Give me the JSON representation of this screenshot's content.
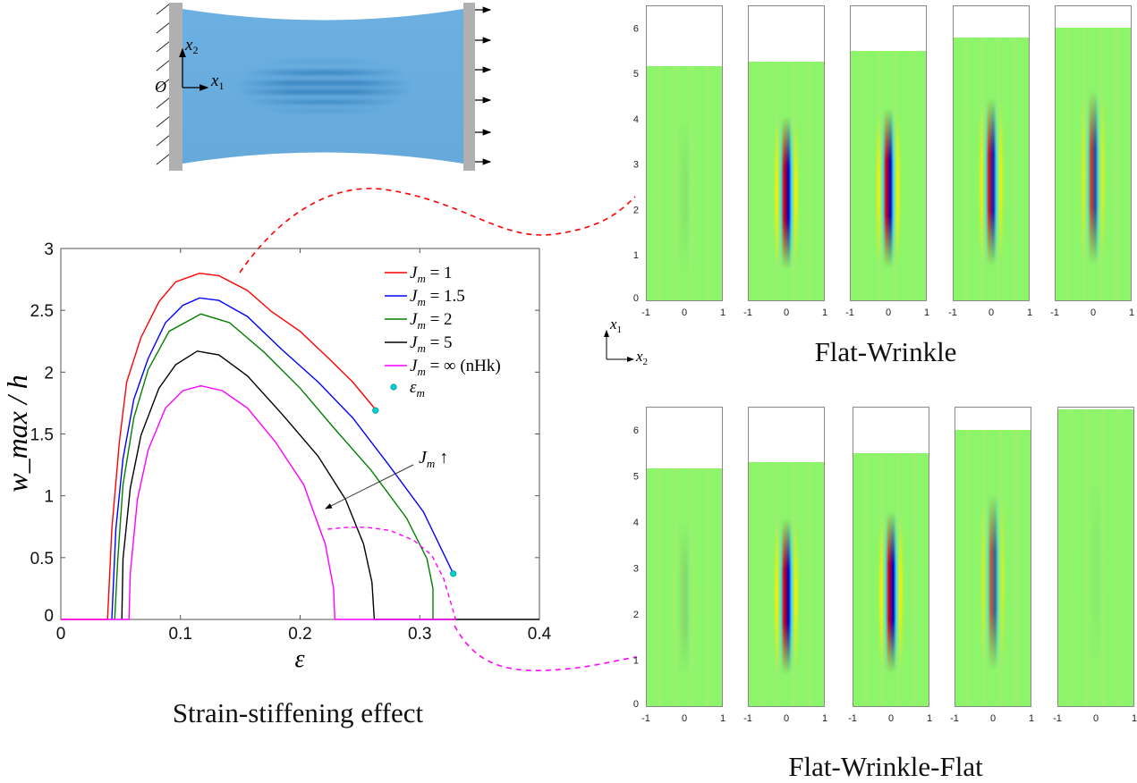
{
  "schematic": {
    "axis_x1": "x",
    "axis_x1_sub": "1",
    "axis_x2": "x",
    "axis_x2_sub": "2",
    "origin": "O",
    "membrane_color": "#6aaedf",
    "clamp_color": "#b0b0b0"
  },
  "chart_data": {
    "type": "line",
    "xlabel": "ε",
    "ylabel": "w_max / h",
    "xlim": [
      0,
      0.4
    ],
    "ylim": [
      0,
      3
    ],
    "xticks": [
      "0",
      "0.1",
      "0.2",
      "0.3",
      "0.4"
    ],
    "yticks": [
      "0",
      "0.5",
      "1",
      "1.5",
      "2",
      "2.5",
      "3"
    ],
    "grid": false,
    "legend_position": "top-right",
    "series": [
      {
        "name": "J_m = 1",
        "label_main": "J",
        "label_sub": "m",
        "label_rest": " = 1",
        "color": "#ff0000",
        "points": [
          [
            0,
            0
          ],
          [
            0.039,
            0
          ],
          [
            0.0426,
            0.73
          ],
          [
            0.049,
            1.44
          ],
          [
            0.055,
            1.92
          ],
          [
            0.067,
            2.28
          ],
          [
            0.082,
            2.57
          ],
          [
            0.096,
            2.73
          ],
          [
            0.116,
            2.8
          ],
          [
            0.132,
            2.78
          ],
          [
            0.156,
            2.66
          ],
          [
            0.176,
            2.49
          ],
          [
            0.2,
            2.33
          ],
          [
            0.224,
            2.11
          ],
          [
            0.244,
            1.92
          ],
          [
            0.262,
            1.71
          ]
        ]
      },
      {
        "name": "J_m = 1.5",
        "label_main": "J",
        "label_sub": "m",
        "label_rest": " = 1.5",
        "color": "#0000ff",
        "points": [
          [
            0.0426,
            0
          ],
          [
            0.046,
            0.73
          ],
          [
            0.052,
            1.3
          ],
          [
            0.061,
            1.78
          ],
          [
            0.073,
            2.11
          ],
          [
            0.0875,
            2.4
          ],
          [
            0.102,
            2.54
          ],
          [
            0.116,
            2.6
          ],
          [
            0.132,
            2.58
          ],
          [
            0.156,
            2.45
          ],
          [
            0.185,
            2.18
          ],
          [
            0.215,
            1.92
          ],
          [
            0.244,
            1.63
          ],
          [
            0.274,
            1.25
          ],
          [
            0.303,
            0.87
          ],
          [
            0.328,
            0.37
          ]
        ]
      },
      {
        "name": "J_m = 2",
        "label_main": "J",
        "label_sub": "m",
        "label_rest": " = 2",
        "color": "#008000",
        "points": [
          [
            0.045,
            0
          ],
          [
            0.0476,
            0.49
          ],
          [
            0.052,
            1.09
          ],
          [
            0.061,
            1.63
          ],
          [
            0.073,
            2.02
          ],
          [
            0.0905,
            2.33
          ],
          [
            0.117,
            2.47
          ],
          [
            0.141,
            2.4
          ],
          [
            0.17,
            2.16
          ],
          [
            0.2,
            1.87
          ],
          [
            0.229,
            1.54
          ],
          [
            0.259,
            1.21
          ],
          [
            0.289,
            0.82
          ],
          [
            0.306,
            0.49
          ],
          [
            0.311,
            0.25
          ],
          [
            0.311,
            0
          ]
        ]
      },
      {
        "name": "J_m = 5",
        "label_main": "J",
        "label_sub": "m",
        "label_rest": " = 5",
        "color": "#000000",
        "points": [
          [
            0.051,
            0
          ],
          [
            0.052,
            0.49
          ],
          [
            0.058,
            1.06
          ],
          [
            0.067,
            1.49
          ],
          [
            0.082,
            1.87
          ],
          [
            0.096,
            2.06
          ],
          [
            0.114,
            2.17
          ],
          [
            0.132,
            2.14
          ],
          [
            0.156,
            1.97
          ],
          [
            0.185,
            1.66
          ],
          [
            0.215,
            1.32
          ],
          [
            0.238,
            0.97
          ],
          [
            0.253,
            0.61
          ],
          [
            0.26,
            0.3
          ],
          [
            0.262,
            0
          ],
          [
            0.4,
            0
          ]
        ]
      },
      {
        "name": "J_m = ∞ (nHk)",
        "label_main": "J",
        "label_sub": "m",
        "label_rest": " = ∞ (nHk)",
        "color": "#ff00ff",
        "points": [
          [
            0,
            0
          ],
          [
            0.057,
            0
          ],
          [
            0.058,
            0.37
          ],
          [
            0.064,
            0.97
          ],
          [
            0.073,
            1.37
          ],
          [
            0.0875,
            1.71
          ],
          [
            0.102,
            1.85
          ],
          [
            0.117,
            1.89
          ],
          [
            0.135,
            1.85
          ],
          [
            0.156,
            1.71
          ],
          [
            0.179,
            1.44
          ],
          [
            0.203,
            1.09
          ],
          [
            0.221,
            0.61
          ],
          [
            0.228,
            0.25
          ],
          [
            0.229,
            0
          ],
          [
            0.33,
            0
          ]
        ]
      }
    ],
    "dashed_branch": {
      "color": "#ff00ff",
      "points": [
        [
          0.223,
          0.73
        ],
        [
          0.24,
          0.745
        ],
        [
          0.255,
          0.745
        ],
        [
          0.275,
          0.72
        ],
        [
          0.295,
          0.64
        ],
        [
          0.31,
          0.52
        ],
        [
          0.32,
          0.33
        ],
        [
          0.33,
          0
        ]
      ]
    },
    "markers": {
      "name": "ε_m",
      "label_main": "ε",
      "label_sub": "m",
      "color": "#00d0d0",
      "points": [
        [
          0.263,
          1.69
        ],
        [
          0.328,
          0.37
        ]
      ]
    },
    "annotation": {
      "main": "J",
      "sub": "m",
      "rest": " ↑"
    }
  },
  "captions": {
    "chart": "Strain-stiffening effect",
    "top_panels": "Flat-Wrinkle",
    "bottom_panels": "Flat-Wrinkle-Flat"
  },
  "panel_axes": {
    "x1": "x",
    "x1_sub": "1",
    "x2": "x",
    "x2_sub": "2",
    "yticks": [
      "0",
      "1",
      "2",
      "3",
      "4",
      "5",
      "6"
    ],
    "xticks": [
      "-1",
      "0",
      "1"
    ],
    "ylim": [
      0,
      6.5
    ],
    "colormap": [
      "#0000c8",
      "#40e0f0",
      "#8cf56a",
      "#f4f000",
      "#e00000"
    ]
  },
  "top_panels": [
    {
      "length": 5.17,
      "wrinkle_amplitude": 0.05
    },
    {
      "length": 5.25,
      "wrinkle_amplitude": 1.0
    },
    {
      "length": 5.5,
      "wrinkle_amplitude": 1.0
    },
    {
      "length": 5.8,
      "wrinkle_amplitude": 0.9
    },
    {
      "length": 6.0,
      "wrinkle_amplitude": 0.7
    }
  ],
  "bottom_panels": [
    {
      "length": 5.17,
      "wrinkle_amplitude": 0.1
    },
    {
      "length": 5.3,
      "wrinkle_amplitude": 1.0
    },
    {
      "length": 5.5,
      "wrinkle_amplitude": 1.0
    },
    {
      "length": 6.0,
      "wrinkle_amplitude": 0.6
    },
    {
      "length": 6.45,
      "wrinkle_amplitude": 0.03
    }
  ]
}
